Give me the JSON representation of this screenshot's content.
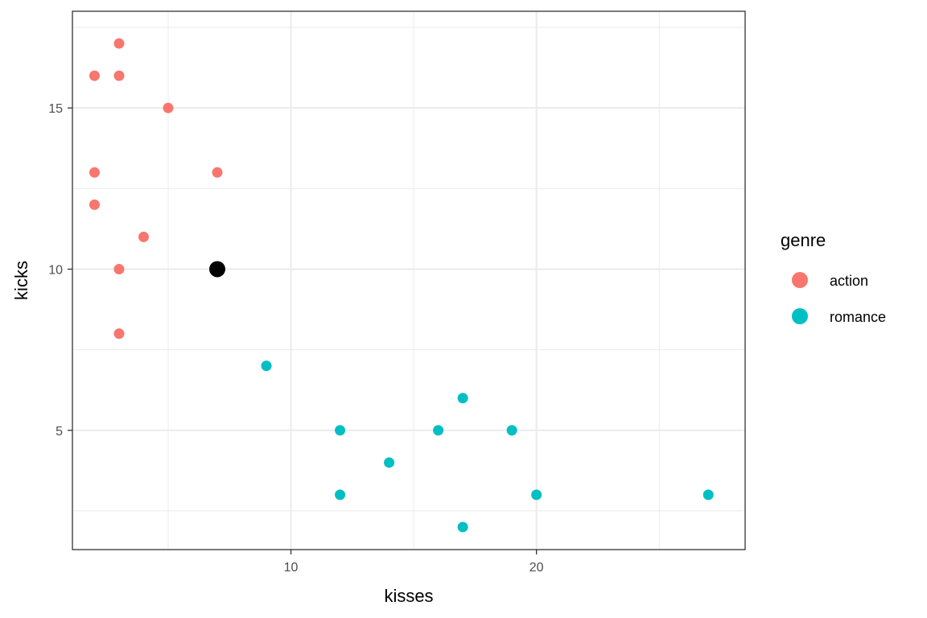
{
  "chart_data": {
    "type": "scatter",
    "xlabel": "kisses",
    "ylabel": "kicks",
    "xlim": [
      1.1,
      28.5
    ],
    "ylim": [
      1.3,
      18.0
    ],
    "x_ticks": [
      10,
      20
    ],
    "y_ticks": [
      5,
      10,
      15
    ],
    "grid": true,
    "legend": {
      "title": "genre",
      "position": "right"
    },
    "series": [
      {
        "name": "action",
        "color": "#F8766D",
        "points": [
          {
            "x": 2,
            "y": 16
          },
          {
            "x": 3,
            "y": 17
          },
          {
            "x": 3,
            "y": 16
          },
          {
            "x": 5,
            "y": 15
          },
          {
            "x": 2,
            "y": 13
          },
          {
            "x": 7,
            "y": 13
          },
          {
            "x": 2,
            "y": 12
          },
          {
            "x": 4,
            "y": 11
          },
          {
            "x": 3,
            "y": 10
          },
          {
            "x": 3,
            "y": 8
          }
        ]
      },
      {
        "name": "romance",
        "color": "#00BFC4",
        "points": [
          {
            "x": 9,
            "y": 7
          },
          {
            "x": 12,
            "y": 5
          },
          {
            "x": 12,
            "y": 3
          },
          {
            "x": 14,
            "y": 4
          },
          {
            "x": 16,
            "y": 5
          },
          {
            "x": 17,
            "y": 6
          },
          {
            "x": 17,
            "y": 2
          },
          {
            "x": 19,
            "y": 5
          },
          {
            "x": 20,
            "y": 3
          },
          {
            "x": 27,
            "y": 3
          }
        ]
      }
    ],
    "highlight_point": {
      "x": 7,
      "y": 10,
      "color": "#000000"
    }
  }
}
